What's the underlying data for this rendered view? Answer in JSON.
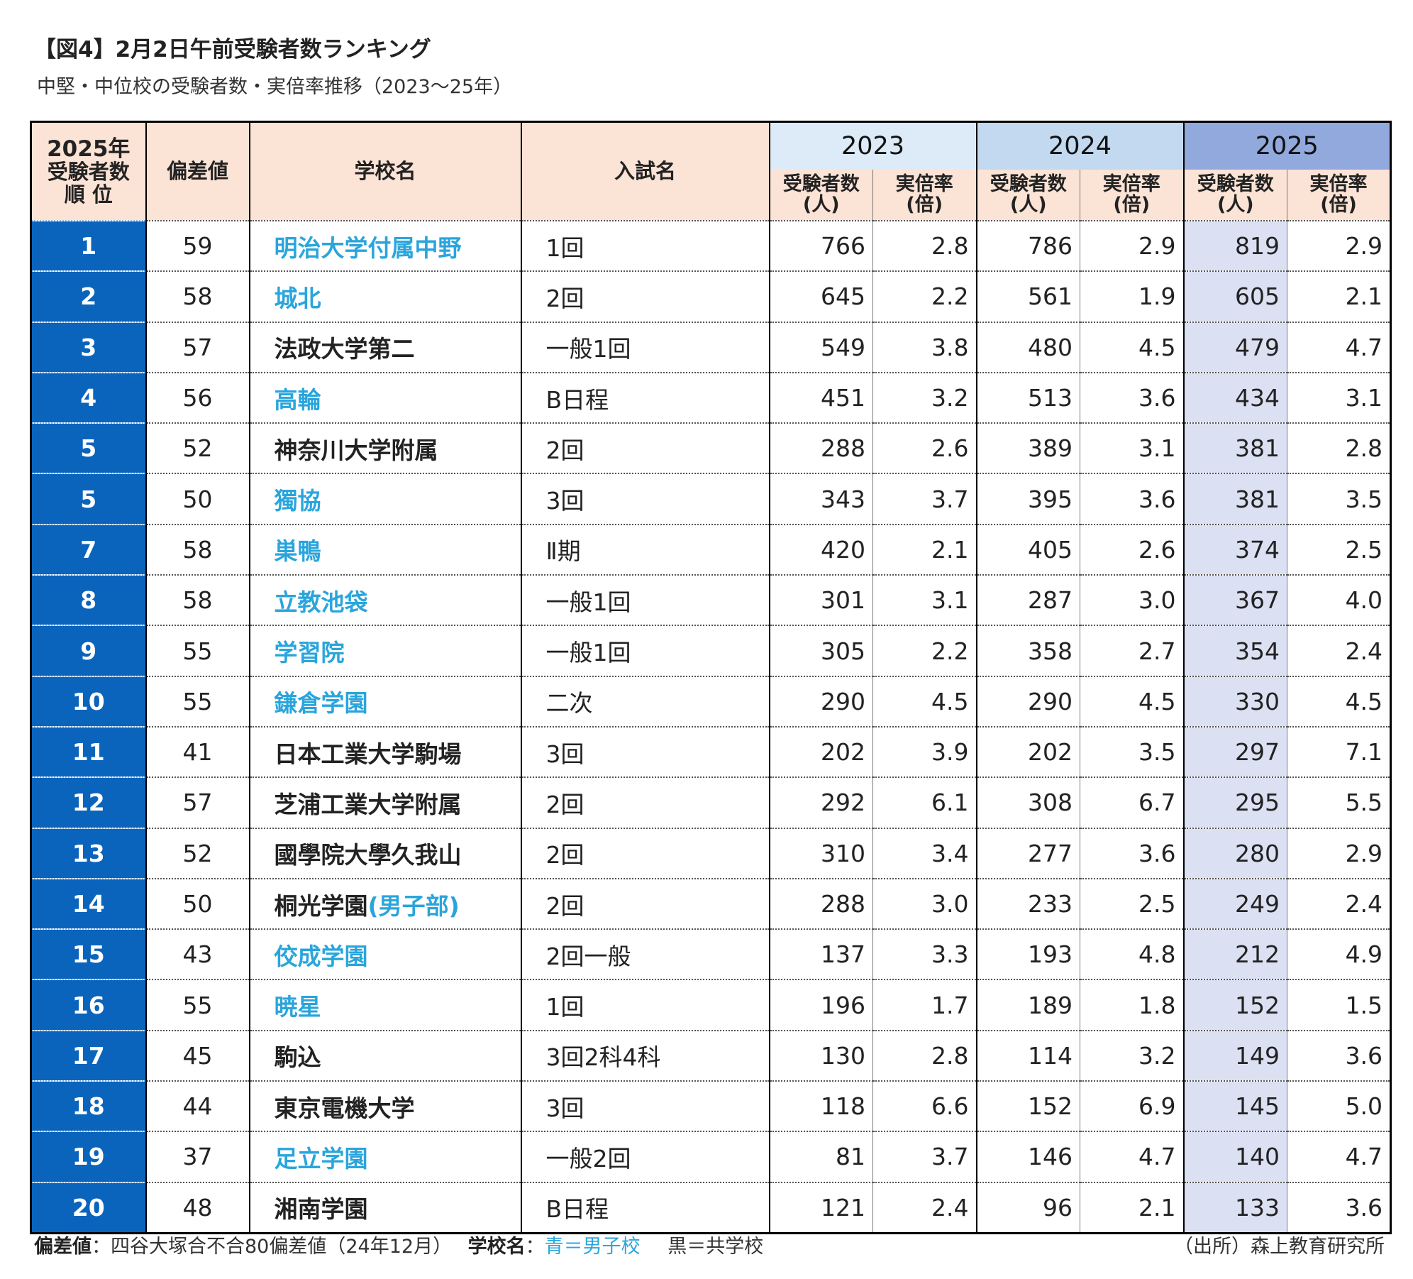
{
  "title": "【図4】2月2日午前受験者数ランキング",
  "subtitle": "中堅・中位校の受験者数・実倍率推移（2023～25年）",
  "colors": {
    "boys_school": "#2aa5dc",
    "coed_school": "#222222",
    "rank_column": "#0a64bc",
    "highlight_2025": "#dbe0f3"
  },
  "headers": {
    "rank_l1": "2025年",
    "rank_l2": "受験者数",
    "rank_l3": "順 位",
    "deviation": "偏差値",
    "school": "学校名",
    "exam": "入試名",
    "years": [
      "2023",
      "2024",
      "2025"
    ],
    "count_l1": "受験者数",
    "count_l2": "(人)",
    "rate_l1": "実倍率",
    "rate_l2": "(倍)"
  },
  "chart_data": {
    "type": "table",
    "columns": [
      "2025年受験者数順位",
      "偏差値",
      "学校名",
      "入試名",
      "2023 受験者数(人)",
      "2023 実倍率(倍)",
      "2024 受験者数(人)",
      "2024 実倍率(倍)",
      "2025 受験者数(人)",
      "2025 実倍率(倍)"
    ],
    "rows": [
      {
        "rank": "1",
        "dev": "59",
        "school": "明治大学付属中野",
        "suffix": "",
        "boys": true,
        "exam": "1回",
        "c2023": "766",
        "r2023": "2.8",
        "c2024": "786",
        "r2024": "2.9",
        "c2025": "819",
        "r2025": "2.9"
      },
      {
        "rank": "2",
        "dev": "58",
        "school": "城北",
        "suffix": "",
        "boys": true,
        "exam": "2回",
        "c2023": "645",
        "r2023": "2.2",
        "c2024": "561",
        "r2024": "1.9",
        "c2025": "605",
        "r2025": "2.1"
      },
      {
        "rank": "3",
        "dev": "57",
        "school": "法政大学第二",
        "suffix": "",
        "boys": false,
        "exam": "一般1回",
        "c2023": "549",
        "r2023": "3.8",
        "c2024": "480",
        "r2024": "4.5",
        "c2025": "479",
        "r2025": "4.7"
      },
      {
        "rank": "4",
        "dev": "56",
        "school": "高輪",
        "suffix": "",
        "boys": true,
        "exam": "B日程",
        "c2023": "451",
        "r2023": "3.2",
        "c2024": "513",
        "r2024": "3.6",
        "c2025": "434",
        "r2025": "3.1"
      },
      {
        "rank": "5",
        "dev": "52",
        "school": "神奈川大学附属",
        "suffix": "",
        "boys": false,
        "exam": "2回",
        "c2023": "288",
        "r2023": "2.6",
        "c2024": "389",
        "r2024": "3.1",
        "c2025": "381",
        "r2025": "2.8"
      },
      {
        "rank": "5",
        "dev": "50",
        "school": "獨協",
        "suffix": "",
        "boys": true,
        "exam": "3回",
        "c2023": "343",
        "r2023": "3.7",
        "c2024": "395",
        "r2024": "3.6",
        "c2025": "381",
        "r2025": "3.5"
      },
      {
        "rank": "7",
        "dev": "58",
        "school": "巣鴨",
        "suffix": "",
        "boys": true,
        "exam": "Ⅱ期",
        "c2023": "420",
        "r2023": "2.1",
        "c2024": "405",
        "r2024": "2.6",
        "c2025": "374",
        "r2025": "2.5"
      },
      {
        "rank": "8",
        "dev": "58",
        "school": "立教池袋",
        "suffix": "",
        "boys": true,
        "exam": "一般1回",
        "c2023": "301",
        "r2023": "3.1",
        "c2024": "287",
        "r2024": "3.0",
        "c2025": "367",
        "r2025": "4.0"
      },
      {
        "rank": "9",
        "dev": "55",
        "school": "学習院",
        "suffix": "",
        "boys": true,
        "exam": "一般1回",
        "c2023": "305",
        "r2023": "2.2",
        "c2024": "358",
        "r2024": "2.7",
        "c2025": "354",
        "r2025": "2.4"
      },
      {
        "rank": "10",
        "dev": "55",
        "school": "鎌倉学園",
        "suffix": "",
        "boys": true,
        "exam": "二次",
        "c2023": "290",
        "r2023": "4.5",
        "c2024": "290",
        "r2024": "4.5",
        "c2025": "330",
        "r2025": "4.5"
      },
      {
        "rank": "11",
        "dev": "41",
        "school": "日本工業大学駒場",
        "suffix": "",
        "boys": false,
        "exam": "3回",
        "c2023": "202",
        "r2023": "3.9",
        "c2024": "202",
        "r2024": "3.5",
        "c2025": "297",
        "r2025": "7.1"
      },
      {
        "rank": "12",
        "dev": "57",
        "school": "芝浦工業大学附属",
        "suffix": "",
        "boys": false,
        "exam": "2回",
        "c2023": "292",
        "r2023": "6.1",
        "c2024": "308",
        "r2024": "6.7",
        "c2025": "295",
        "r2025": "5.5"
      },
      {
        "rank": "13",
        "dev": "52",
        "school": "國學院大學久我山",
        "suffix": "",
        "boys": false,
        "exam": "2回",
        "c2023": "310",
        "r2023": "3.4",
        "c2024": "277",
        "r2024": "3.6",
        "c2025": "280",
        "r2025": "2.9"
      },
      {
        "rank": "14",
        "dev": "50",
        "school": "桐光学園",
        "suffix": "(男子部)",
        "boys": false,
        "exam": "2回",
        "c2023": "288",
        "r2023": "3.0",
        "c2024": "233",
        "r2024": "2.5",
        "c2025": "249",
        "r2025": "2.4"
      },
      {
        "rank": "15",
        "dev": "43",
        "school": "佼成学園",
        "suffix": "",
        "boys": true,
        "exam": "2回一般",
        "c2023": "137",
        "r2023": "3.3",
        "c2024": "193",
        "r2024": "4.8",
        "c2025": "212",
        "r2025": "4.9"
      },
      {
        "rank": "16",
        "dev": "55",
        "school": "暁星",
        "suffix": "",
        "boys": true,
        "exam": "1回",
        "c2023": "196",
        "r2023": "1.7",
        "c2024": "189",
        "r2024": "1.8",
        "c2025": "152",
        "r2025": "1.5"
      },
      {
        "rank": "17",
        "dev": "45",
        "school": "駒込",
        "suffix": "",
        "boys": false,
        "exam": "3回2科4科",
        "c2023": "130",
        "r2023": "2.8",
        "c2024": "114",
        "r2024": "3.2",
        "c2025": "149",
        "r2025": "3.6"
      },
      {
        "rank": "18",
        "dev": "44",
        "school": "東京電機大学",
        "suffix": "",
        "boys": false,
        "exam": "3回",
        "c2023": "118",
        "r2023": "6.6",
        "c2024": "152",
        "r2024": "6.9",
        "c2025": "145",
        "r2025": "5.0"
      },
      {
        "rank": "19",
        "dev": "37",
        "school": "足立学園",
        "suffix": "",
        "boys": true,
        "exam": "一般2回",
        "c2023": "81",
        "r2023": "3.7",
        "c2024": "146",
        "r2024": "4.7",
        "c2025": "140",
        "r2025": "4.7"
      },
      {
        "rank": "20",
        "dev": "48",
        "school": "湘南学園",
        "suffix": "",
        "boys": false,
        "exam": "B日程",
        "c2023": "121",
        "r2023": "2.4",
        "c2024": "96",
        "r2024": "2.1",
        "c2025": "133",
        "r2025": "3.6"
      }
    ]
  },
  "footer": {
    "dev_label": "偏差値",
    "dev_text": "：四谷大塚合不合80偏差値（24年12月）",
    "school_label": "学校名",
    "school_colon": "：",
    "boys_legend": "青＝男子校",
    "coed_legend": "黒＝共学校",
    "source": "（出所）森上教育研究所"
  }
}
